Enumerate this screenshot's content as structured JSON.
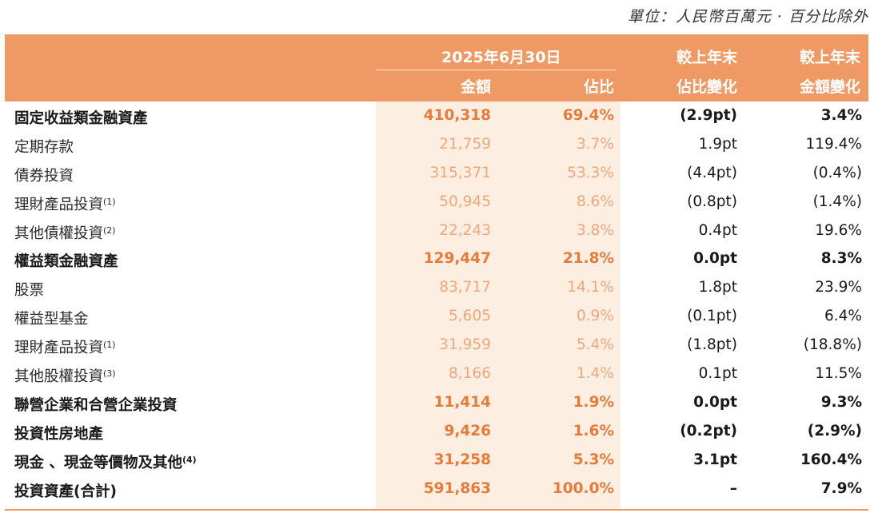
{
  "unit_note": "單位：人民幣百萬元 · 百分比除外",
  "header": {
    "date": "2025年6月30日",
    "amount": "金額",
    "share": "佔比",
    "change_share_l1": "較上年末",
    "change_share_l2": "佔比變化",
    "change_amount_l1": "較上年末",
    "change_amount_l2": "金額變化"
  },
  "rows": [
    {
      "label": "固定收益類金融資產",
      "note": "",
      "amount": "410,318",
      "share": "69.4%",
      "share_change": "(2.9pt)",
      "amount_change": "3.4%",
      "bold": true
    },
    {
      "label": "定期存款",
      "note": "",
      "amount": "21,759",
      "share": "3.7%",
      "share_change": "1.9pt",
      "amount_change": "119.4%",
      "bold": false
    },
    {
      "label": "債券投資",
      "note": "",
      "amount": "315,371",
      "share": "53.3%",
      "share_change": "(4.4pt)",
      "amount_change": "(0.4%)",
      "bold": false
    },
    {
      "label": "理財產品投資",
      "note": "(1)",
      "amount": "50,945",
      "share": "8.6%",
      "share_change": "(0.8pt)",
      "amount_change": "(1.4%)",
      "bold": false
    },
    {
      "label": "其他債權投資",
      "note": "(2)",
      "amount": "22,243",
      "share": "3.8%",
      "share_change": "0.4pt",
      "amount_change": "19.6%",
      "bold": false
    },
    {
      "label": "權益類金融資產",
      "note": "",
      "amount": "129,447",
      "share": "21.8%",
      "share_change": "0.0pt",
      "amount_change": "8.3%",
      "bold": true
    },
    {
      "label": "股票",
      "note": "",
      "amount": "83,717",
      "share": "14.1%",
      "share_change": "1.8pt",
      "amount_change": "23.9%",
      "bold": false
    },
    {
      "label": "權益型基金",
      "note": "",
      "amount": "5,605",
      "share": "0.9%",
      "share_change": "(0.1pt)",
      "amount_change": "6.4%",
      "bold": false
    },
    {
      "label": "理財產品投資",
      "note": "(1)",
      "amount": "31,959",
      "share": "5.4%",
      "share_change": "(1.8pt)",
      "amount_change": "(18.8%)",
      "bold": false
    },
    {
      "label": "其他股權投資",
      "note": "(3)",
      "amount": "8,166",
      "share": "1.4%",
      "share_change": "0.1pt",
      "amount_change": "11.5%",
      "bold": false
    },
    {
      "label": "聯營企業和合營企業投資",
      "note": "",
      "amount": "11,414",
      "share": "1.9%",
      "share_change": "0.0pt",
      "amount_change": "9.3%",
      "bold": true
    },
    {
      "label": "投資性房地產",
      "note": "",
      "amount": "9,426",
      "share": "1.6%",
      "share_change": "(0.2pt)",
      "amount_change": "(2.9%)",
      "bold": true
    },
    {
      "label": "現金 、現金等價物及其他",
      "note": "(4)",
      "amount": "31,258",
      "share": "5.3%",
      "share_change": "3.1pt",
      "amount_change": "160.4%",
      "bold": true
    },
    {
      "label": "投資資產(合計)",
      "note": "",
      "amount": "591,863",
      "share": "100.0%",
      "share_change": "–",
      "amount_change": "7.9%",
      "bold": true
    }
  ]
}
